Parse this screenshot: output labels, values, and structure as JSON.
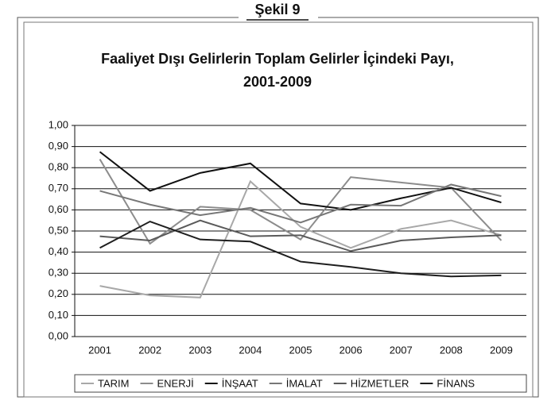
{
  "figure_label": "Şekil 9",
  "chart_data": {
    "type": "line",
    "title": [
      "Faaliyet Dışı Gelirlerin Toplam Gelirler İçindeki Payı,",
      "2001-2009"
    ],
    "categories": [
      "2001",
      "2002",
      "2003",
      "2004",
      "2005",
      "2006",
      "2007",
      "2008",
      "2009"
    ],
    "series": [
      {
        "name": "TARIM",
        "color": "#a8a8a8",
        "values": [
          0.24,
          0.195,
          0.185,
          0.735,
          0.52,
          0.42,
          0.51,
          0.55,
          0.48
        ]
      },
      {
        "name": "ENERJİ",
        "color": "#8c8c8c",
        "values": [
          0.84,
          0.44,
          0.615,
          0.6,
          0.46,
          0.755,
          0.73,
          0.705,
          0.455
        ]
      },
      {
        "name": "İNŞAAT",
        "color": "#111111",
        "values": [
          0.875,
          0.69,
          0.775,
          0.82,
          0.63,
          0.6,
          0.655,
          0.705,
          0.635
        ]
      },
      {
        "name": "İMALAT",
        "color": "#777777",
        "values": [
          0.69,
          0.625,
          0.575,
          0.61,
          0.54,
          0.625,
          0.62,
          0.72,
          0.665
        ]
      },
      {
        "name": "HİZMETLER",
        "color": "#5a5a5a",
        "values": [
          0.475,
          0.455,
          0.55,
          0.475,
          0.48,
          0.405,
          0.455,
          0.47,
          0.48
        ]
      },
      {
        "name": "FİNANS",
        "color": "#1e1e1e",
        "values": [
          0.42,
          0.545,
          0.46,
          0.45,
          0.355,
          0.33,
          0.3,
          0.285,
          0.29
        ]
      }
    ],
    "ylim": [
      0,
      1
    ],
    "yticks": [
      {
        "value": 0,
        "label": "0,00"
      },
      {
        "value": 0.1,
        "label": "0,10"
      },
      {
        "value": 0.2,
        "label": "0,20"
      },
      {
        "value": 0.3,
        "label": "0,30"
      },
      {
        "value": 0.4,
        "label": "0,40"
      },
      {
        "value": 0.5,
        "label": "0,50"
      },
      {
        "value": 0.6,
        "label": "0,60"
      },
      {
        "value": 0.7,
        "label": "0,70"
      },
      {
        "value": 0.8,
        "label": "0,80"
      },
      {
        "value": 0.9,
        "label": "0,90"
      },
      {
        "value": 1,
        "label": "1,00"
      }
    ],
    "grid": true,
    "legend": "bottom"
  }
}
